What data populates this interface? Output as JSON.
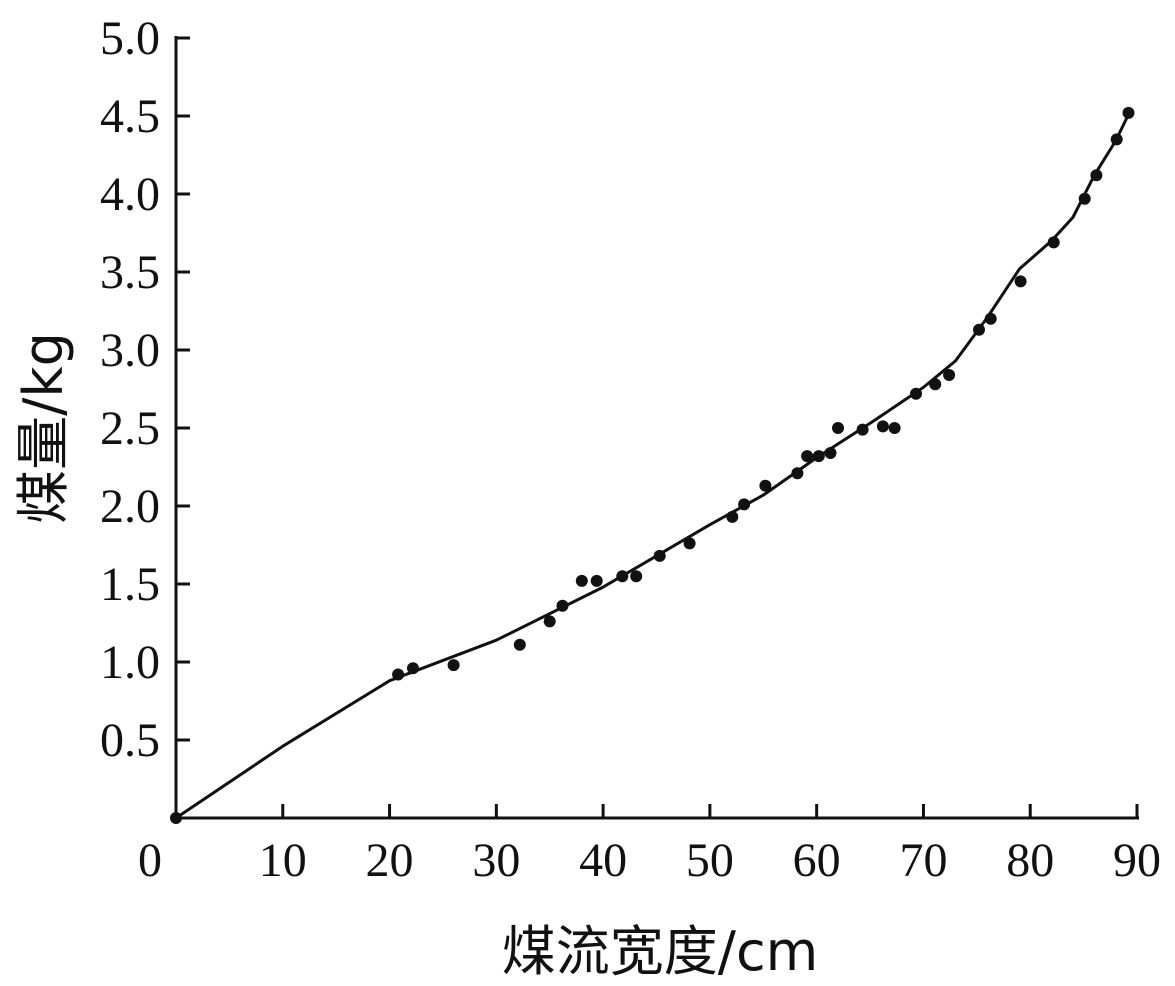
{
  "chart_data": {
    "type": "scatter",
    "xlabel": "煤流宽度/cm",
    "ylabel": "煤量/kg",
    "xlim": [
      0,
      90
    ],
    "ylim": [
      0,
      5.0
    ],
    "x_ticks": [
      "0",
      "10",
      "20",
      "30",
      "40",
      "50",
      "60",
      "70",
      "80",
      "90"
    ],
    "y_ticks": [
      "0.5",
      "1.0",
      "1.5",
      "2.0",
      "2.5",
      "3.0",
      "3.5",
      "4.0",
      "4.5",
      "5.0"
    ],
    "grid": false,
    "series": [
      {
        "kind": "points",
        "x": [
          0,
          20.8,
          22.2,
          26.0,
          32.2,
          35.0,
          36.2,
          38.0,
          39.4,
          41.8,
          43.1,
          45.3,
          48.1,
          52.1,
          53.2,
          55.2,
          58.2,
          59.1,
          60.2,
          61.3,
          62.0,
          64.3,
          66.2,
          67.3,
          69.3,
          71.1,
          72.4,
          75.2,
          76.3,
          79.1,
          82.2,
          85.1,
          86.2,
          88.1,
          89.2
        ],
        "y": [
          0.0,
          0.92,
          0.96,
          0.98,
          1.11,
          1.26,
          1.36,
          1.52,
          1.52,
          1.55,
          1.55,
          1.68,
          1.76,
          1.93,
          2.01,
          2.13,
          2.21,
          2.32,
          2.32,
          2.34,
          2.5,
          2.49,
          2.51,
          2.5,
          2.72,
          2.78,
          2.84,
          3.13,
          3.2,
          3.44,
          3.69,
          3.97,
          4.12,
          4.35,
          4.52
        ]
      },
      {
        "kind": "line",
        "x": [
          0,
          10,
          20,
          30,
          40,
          50,
          55,
          60,
          65,
          70,
          73,
          76,
          79,
          82,
          84,
          86,
          88,
          89.2
        ],
        "y": [
          0.0,
          0.46,
          0.88,
          1.14,
          1.48,
          1.88,
          2.07,
          2.31,
          2.53,
          2.76,
          2.93,
          3.21,
          3.52,
          3.7,
          3.85,
          4.12,
          4.34,
          4.51
        ]
      }
    ]
  }
}
